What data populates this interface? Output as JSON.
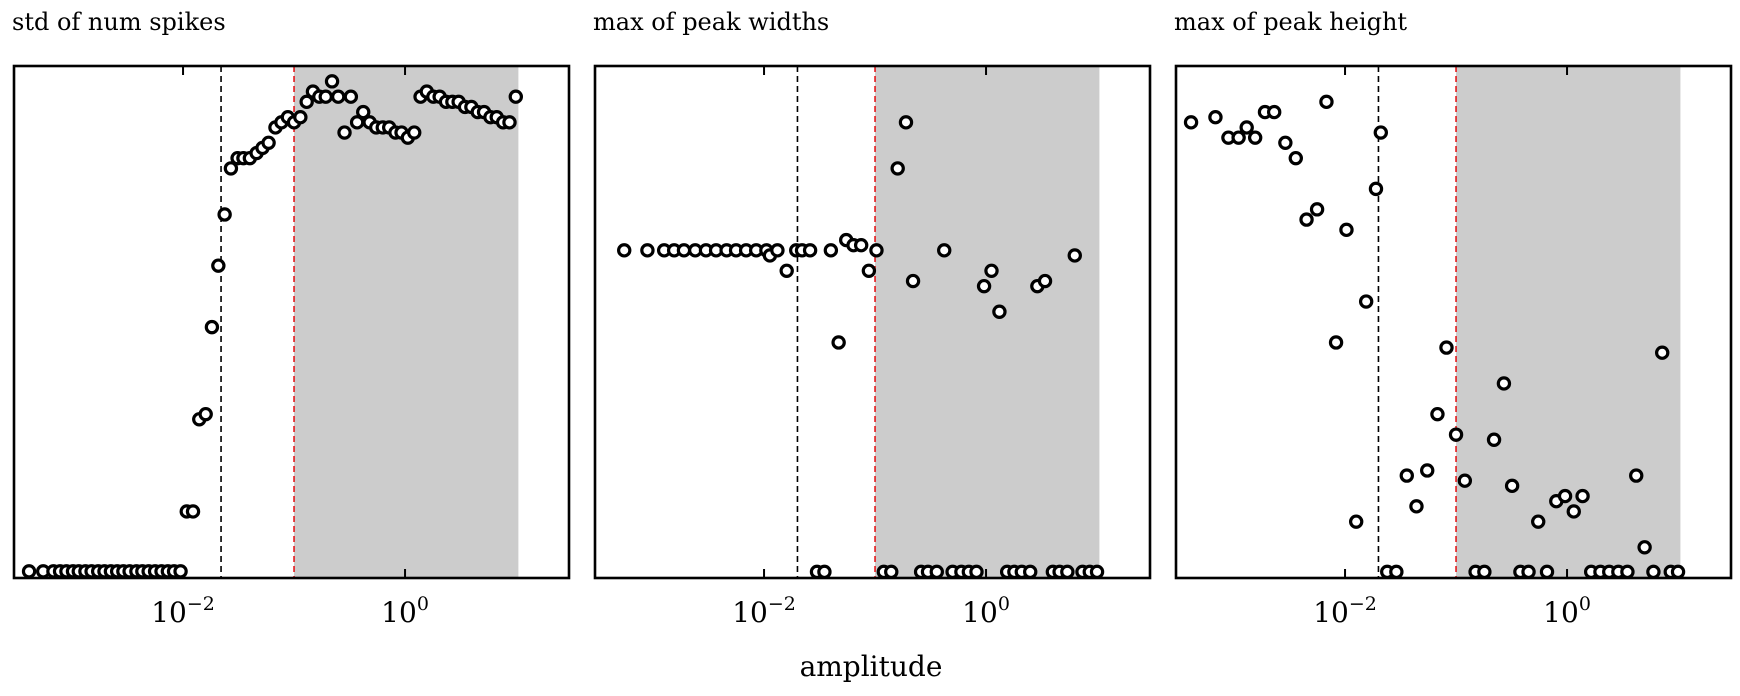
{
  "figure": {
    "xlabel": "amplitude",
    "colors": {
      "marker_edge": "#000000",
      "marker_face": "#ffffff",
      "shade": "#cccccc",
      "black_line": "#000000",
      "red_line": "#e41a1c"
    }
  },
  "chart_data": [
    {
      "type": "scatter",
      "title": "std of num spikes",
      "xlabel": "amplitude",
      "ylabel": "",
      "xscale": "log",
      "xlim": [
        0.0003,
        30
      ],
      "ylim": [
        0,
        1
      ],
      "xticks": [
        {
          "value": 0.01,
          "base": "10",
          "exp": "−2"
        },
        {
          "value": 1,
          "base": "10",
          "exp": "0"
        }
      ],
      "yticks_visible": false,
      "vlines": [
        {
          "x": 0.022,
          "style": "dashed",
          "color": "black"
        },
        {
          "x": 0.1,
          "style": "dashed",
          "color": "red"
        }
      ],
      "shaded_region": [
        0.1,
        10.5
      ],
      "marker": "open-circle",
      "series": [
        {
          "x": [
            0.00041,
            0.00055,
            0.00068,
            0.00078,
            0.00089,
            0.00102,
            0.00115,
            0.00132,
            0.0015,
            0.00172,
            0.00196,
            0.00224,
            0.00255,
            0.0029,
            0.0033,
            0.0038,
            0.0043,
            0.0049,
            0.0056,
            0.0064,
            0.0073,
            0.0083,
            0.0095,
            0.0108,
            0.0123,
            0.014,
            0.016,
            0.0182,
            0.0208,
            0.0237,
            0.027,
            0.031,
            0.035,
            0.04,
            0.046,
            0.052,
            0.059,
            0.068,
            0.077,
            0.088,
            0.1,
            0.114,
            0.13,
            0.148,
            0.169,
            0.193,
            0.22,
            0.25,
            0.285,
            0.325,
            0.37,
            0.42,
            0.48,
            0.55,
            0.63,
            0.72,
            0.82,
            0.93,
            1.06,
            1.21,
            1.38,
            1.57,
            1.8,
            2.05,
            2.34,
            2.67,
            3.04,
            3.47,
            3.96,
            4.52,
            5.15,
            5.88,
            6.7,
            7.65,
            8.73,
            9.95
          ],
          "y": [
            0.013,
            0.013,
            0.013,
            0.013,
            0.013,
            0.013,
            0.013,
            0.013,
            0.013,
            0.013,
            0.013,
            0.013,
            0.013,
            0.013,
            0.013,
            0.013,
            0.013,
            0.013,
            0.013,
            0.013,
            0.013,
            0.013,
            0.013,
            0.13,
            0.13,
            0.31,
            0.32,
            0.49,
            0.61,
            0.71,
            0.8,
            0.82,
            0.82,
            0.82,
            0.83,
            0.84,
            0.85,
            0.88,
            0.89,
            0.9,
            0.89,
            0.9,
            0.93,
            0.95,
            0.94,
            0.94,
            0.97,
            0.94,
            0.87,
            0.94,
            0.89,
            0.91,
            0.89,
            0.88,
            0.88,
            0.88,
            0.87,
            0.87,
            0.86,
            0.87,
            0.94,
            0.95,
            0.94,
            0.94,
            0.93,
            0.93,
            0.93,
            0.92,
            0.92,
            0.91,
            0.91,
            0.9,
            0.9,
            0.89,
            0.89,
            0.94
          ]
        }
      ]
    },
    {
      "type": "scatter",
      "title": "max of peak widths",
      "xlabel": "amplitude",
      "ylabel": "",
      "xscale": "log",
      "xlim": [
        0.0003,
        30
      ],
      "ylim": [
        0,
        1
      ],
      "xticks": [
        {
          "value": 0.01,
          "base": "10",
          "exp": "−2"
        },
        {
          "value": 1,
          "base": "10",
          "exp": "0"
        }
      ],
      "yticks_visible": false,
      "vlines": [
        {
          "x": 0.02,
          "style": "dashed",
          "color": "black"
        },
        {
          "x": 0.1,
          "style": "dashed",
          "color": "red"
        }
      ],
      "shaded_region": [
        0.1,
        10.5
      ],
      "marker": "open-circle",
      "series": [
        {
          "x": [
            0.00055,
            0.00089,
            0.00126,
            0.00155,
            0.0019,
            0.0024,
            0.003,
            0.0037,
            0.0046,
            0.0056,
            0.0069,
            0.0085,
            0.0105,
            0.0113,
            0.0132,
            0.016,
            0.0195,
            0.022,
            0.026,
            0.03,
            0.035,
            0.04,
            0.047,
            0.055,
            0.064,
            0.075,
            0.088,
            0.103,
            0.12,
            0.14,
            0.16,
            0.19,
            0.22,
            0.26,
            0.3,
            0.36,
            0.42,
            0.5,
            0.6,
            0.7,
            0.82,
            0.96,
            1.12,
            1.32,
            1.55,
            1.8,
            2.1,
            2.5,
            2.9,
            3.4,
            4.0,
            4.6,
            5.4,
            6.3,
            7.4,
            8.6,
            10.0
          ],
          "y": [
            0.64,
            0.64,
            0.64,
            0.64,
            0.64,
            0.64,
            0.64,
            0.64,
            0.64,
            0.64,
            0.64,
            0.64,
            0.64,
            0.63,
            0.64,
            0.6,
            0.64,
            0.64,
            0.64,
            0.012,
            0.012,
            0.64,
            0.46,
            0.66,
            0.65,
            0.65,
            0.6,
            0.64,
            0.012,
            0.012,
            0.8,
            0.89,
            0.58,
            0.012,
            0.012,
            0.012,
            0.64,
            0.012,
            0.012,
            0.012,
            0.012,
            0.57,
            0.6,
            0.52,
            0.012,
            0.012,
            0.012,
            0.012,
            0.57,
            0.58,
            0.012,
            0.012,
            0.012,
            0.63,
            0.012,
            0.012,
            0.012
          ]
        }
      ]
    },
    {
      "type": "scatter",
      "title": "max of peak height",
      "xlabel": "amplitude",
      "ylabel": "",
      "xscale": "log",
      "xlim": [
        0.0003,
        30
      ],
      "ylim": [
        0,
        1
      ],
      "xticks": [
        {
          "value": 0.01,
          "base": "10",
          "exp": "−2"
        },
        {
          "value": 1,
          "base": "10",
          "exp": "0"
        }
      ],
      "yticks_visible": false,
      "vlines": [
        {
          "x": 0.02,
          "style": "dashed",
          "color": "black"
        },
        {
          "x": 0.1,
          "style": "dashed",
          "color": "red"
        }
      ],
      "shaded_region": [
        0.1,
        10.5
      ],
      "marker": "open-circle",
      "series": [
        {
          "x": [
            0.00041,
            0.00068,
            0.00089,
            0.0011,
            0.0013,
            0.00155,
            0.0019,
            0.0023,
            0.0029,
            0.0036,
            0.0045,
            0.0056,
            0.0068,
            0.0083,
            0.0103,
            0.0126,
            0.0155,
            0.019,
            0.021,
            0.024,
            0.029,
            0.036,
            0.044,
            0.055,
            0.068,
            0.082,
            0.1,
            0.12,
            0.15,
            0.18,
            0.22,
            0.27,
            0.32,
            0.38,
            0.45,
            0.55,
            0.66,
            0.8,
            0.96,
            1.15,
            1.38,
            1.65,
            2.0,
            2.4,
            2.9,
            3.5,
            4.2,
            5.0,
            6.0,
            7.2,
            8.6,
            10.0
          ],
          "y": [
            0.89,
            0.9,
            0.86,
            0.86,
            0.88,
            0.86,
            0.91,
            0.91,
            0.85,
            0.82,
            0.7,
            0.72,
            0.93,
            0.46,
            0.68,
            0.11,
            0.54,
            0.76,
            0.87,
            0.012,
            0.012,
            0.2,
            0.14,
            0.21,
            0.32,
            0.45,
            0.28,
            0.19,
            0.012,
            0.012,
            0.27,
            0.38,
            0.18,
            0.012,
            0.012,
            0.11,
            0.012,
            0.15,
            0.16,
            0.13,
            0.16,
            0.012,
            0.012,
            0.012,
            0.012,
            0.012,
            0.2,
            0.06,
            0.012,
            0.44,
            0.012,
            0.012
          ]
        }
      ]
    }
  ]
}
